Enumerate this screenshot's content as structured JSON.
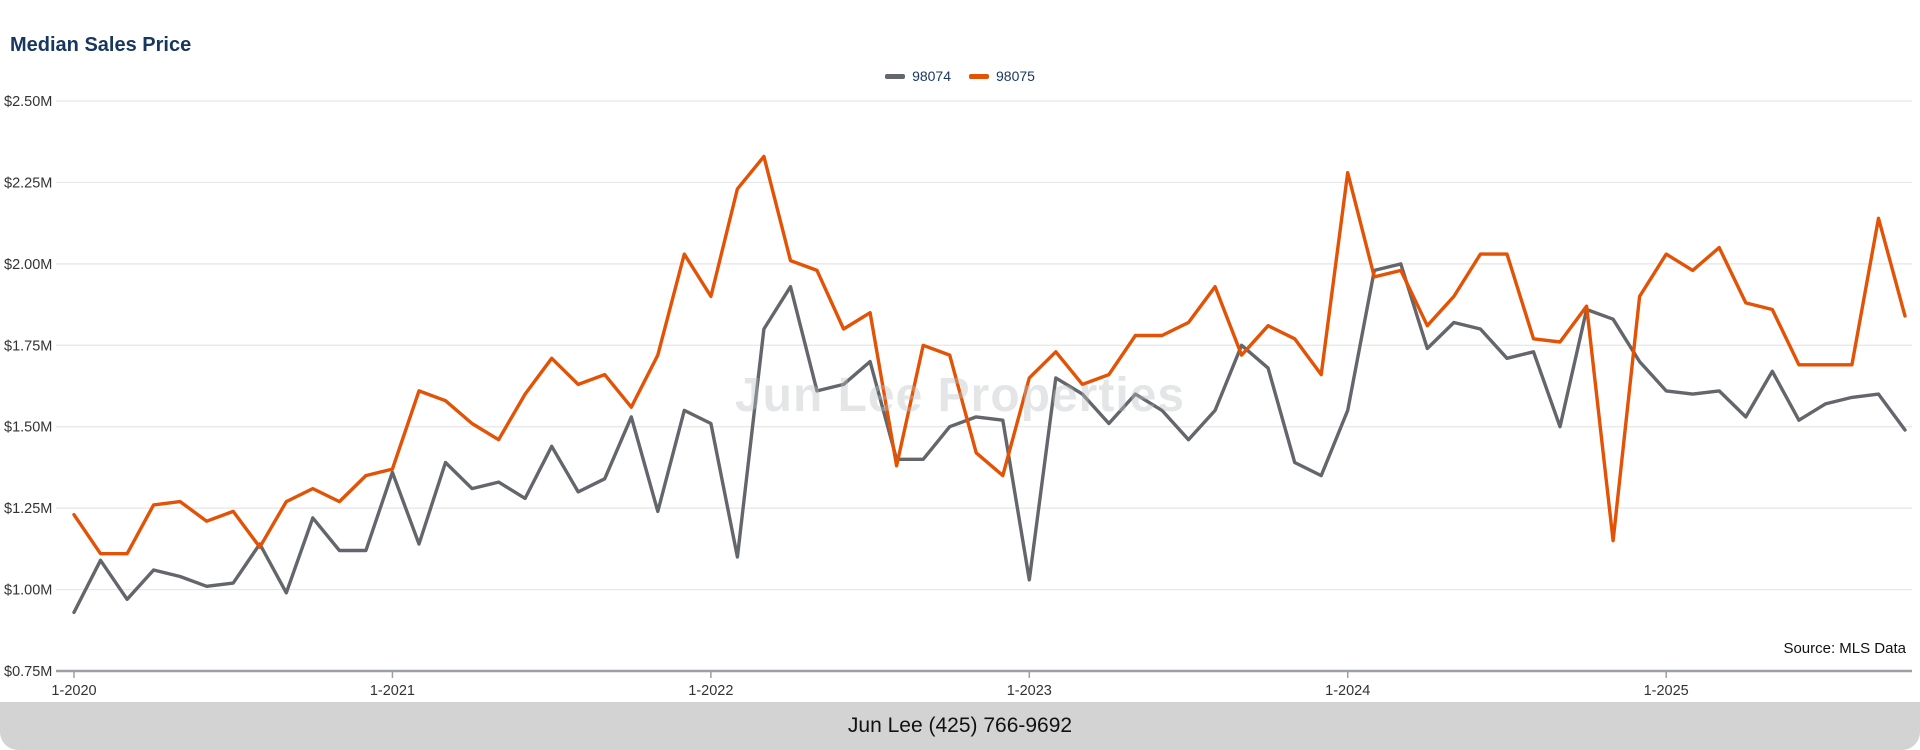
{
  "watermark": "Jun Lee Properties",
  "source": "Source: MLS Data",
  "footer": {
    "text": "Jun Lee (425) 766-9692"
  },
  "colors": {
    "title": "#17375E",
    "legend_text": "#17375E",
    "gridline": "#e6e6e6",
    "axis": "#9aa0a5",
    "footer_bg": "#d3d3d3"
  },
  "chart_data": {
    "type": "line",
    "title": "Median Sales Price",
    "xlabel": "",
    "ylabel": "",
    "ylim": [
      0.75,
      2.5
    ],
    "grid": "horizontal",
    "legend_position": "top-center",
    "y_tick_labels": [
      "$2.50M",
      "$2.25M",
      "$2.00M",
      "$1.75M",
      "$1.50M",
      "$1.25M",
      "$1.00M",
      "$0.75M"
    ],
    "y_tick_values": [
      2.5,
      2.25,
      2.0,
      1.75,
      1.5,
      1.25,
      1.0,
      0.75
    ],
    "x_tick_labels": [
      "1-2020",
      "1-2021",
      "1-2022",
      "1-2023",
      "1-2024",
      "1-2025"
    ],
    "x_tick_positions": [
      0,
      12,
      24,
      36,
      48,
      60
    ],
    "x_unit": "month",
    "series": [
      {
        "name": "98074",
        "color": "#63666A",
        "values": [
          0.93,
          1.09,
          0.97,
          1.06,
          1.04,
          1.01,
          1.02,
          1.14,
          0.99,
          1.22,
          1.12,
          1.12,
          1.36,
          1.14,
          1.39,
          1.31,
          1.33,
          1.28,
          1.44,
          1.3,
          1.34,
          1.53,
          1.24,
          1.55,
          1.51,
          1.1,
          1.8,
          1.93,
          1.61,
          1.63,
          1.7,
          1.4,
          1.4,
          1.5,
          1.53,
          1.52,
          1.03,
          1.65,
          1.6,
          1.51,
          1.6,
          1.55,
          1.46,
          1.55,
          1.75,
          1.68,
          1.39,
          1.35,
          1.55,
          1.98,
          2.0,
          1.74,
          1.82,
          1.8,
          1.71,
          1.73,
          1.5,
          1.86,
          1.83,
          1.7,
          1.61,
          1.6,
          1.61,
          1.53,
          1.67,
          1.52,
          1.57,
          1.59,
          1.6,
          1.49
        ]
      },
      {
        "name": "98075",
        "color": "#E35205",
        "values": [
          1.23,
          1.11,
          1.11,
          1.26,
          1.27,
          1.21,
          1.24,
          1.13,
          1.27,
          1.31,
          1.27,
          1.35,
          1.37,
          1.61,
          1.58,
          1.51,
          1.46,
          1.6,
          1.71,
          1.63,
          1.66,
          1.56,
          1.72,
          2.03,
          1.9,
          2.23,
          2.33,
          2.01,
          1.98,
          1.8,
          1.85,
          1.38,
          1.75,
          1.72,
          1.42,
          1.35,
          1.65,
          1.73,
          1.63,
          1.66,
          1.78,
          1.78,
          1.82,
          1.93,
          1.72,
          1.81,
          1.77,
          1.66,
          2.28,
          1.96,
          1.98,
          1.81,
          1.9,
          2.03,
          2.03,
          1.77,
          1.76,
          1.87,
          1.15,
          1.9,
          2.03,
          1.98,
          2.05,
          1.88,
          1.86,
          1.69,
          1.69,
          1.69,
          2.14,
          1.84
        ]
      }
    ]
  }
}
